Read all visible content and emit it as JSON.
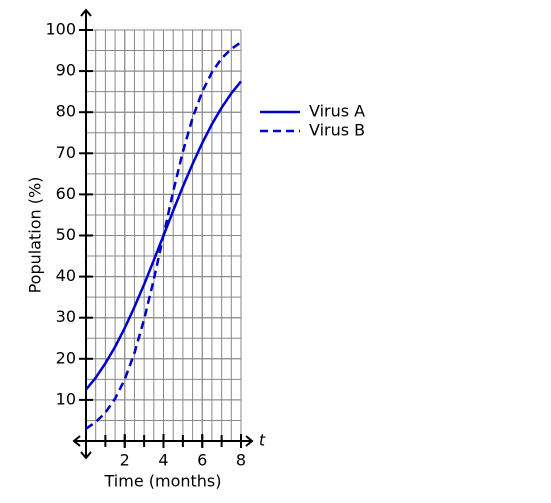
{
  "chart_data": {
    "type": "line",
    "x_label": "Time (months)",
    "y_label": "Population (%)",
    "x_axis_name": "t",
    "x": [
      0,
      0.5,
      1,
      1.5,
      2,
      2.5,
      3,
      3.5,
      4,
      4.5,
      5,
      5.5,
      6,
      6.5,
      7,
      7.5,
      8
    ],
    "series": [
      {
        "name": "Virus A",
        "color": "#0000cc",
        "dash": false,
        "values": [
          12.5,
          15.4,
          18.9,
          22.9,
          27.5,
          32.6,
          38.1,
          44.0,
          50,
          56.0,
          61.9,
          67.4,
          72.5,
          77.1,
          81.1,
          84.6,
          87.5
        ]
      },
      {
        "name": "Virus B",
        "color": "#0000cc",
        "dash": true,
        "values": [
          3.0,
          4.6,
          6.9,
          10.3,
          15.0,
          21.4,
          29.6,
          39.3,
          50,
          60.7,
          70.4,
          78.6,
          85.0,
          89.7,
          93.1,
          95.4,
          97.0
        ]
      }
    ],
    "xlim": [
      0,
      8
    ],
    "ylim": [
      0,
      100
    ],
    "xticks": [
      2,
      4,
      6,
      8
    ],
    "yticks": [
      10,
      20,
      30,
      40,
      50,
      60,
      70,
      80,
      90,
      100
    ],
    "grid": true
  }
}
